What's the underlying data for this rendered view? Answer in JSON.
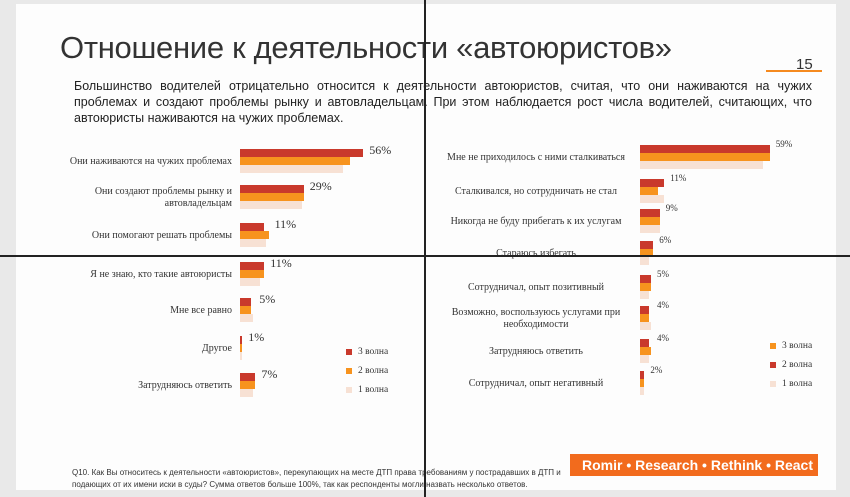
{
  "header": {
    "title": "Отношение к деятельности «автоюристов»",
    "page_number": "15",
    "lead": "Большинство водителей отрицательно относится к деятельности автоюристов, считая, что они наживаются на чужих проблемах и создают проблемы рынку и автовладельцам. При этом наблюдается рост числа водителей, считающих, что автоюристы наживаются на чужих проблемах."
  },
  "colors": {
    "wave3": "#c9392c",
    "wave2": "#f7931e",
    "wave1": "#f7e1d4",
    "accent": "#f26b1d"
  },
  "chart_data": [
    {
      "type": "bar",
      "orientation": "horizontal",
      "title": "",
      "categories": [
        "Они наживаются на чужих проблемах",
        "Они создают проблемы рынку и автовладельцам",
        "Они помогают решать проблемы",
        "Я не знаю, кто такие автоюристы",
        "Мне все равно",
        "Другое",
        "Затрудняюсь ответить"
      ],
      "series": [
        {
          "name": "3 волна",
          "values": [
            56,
            29,
            11,
            11,
            5,
            1,
            7
          ]
        },
        {
          "name": "2 волна",
          "values": [
            50,
            29,
            13,
            11,
            5,
            1,
            7
          ]
        },
        {
          "name": "1 волна",
          "values": [
            47,
            28,
            12,
            9,
            6,
            1,
            6
          ]
        }
      ],
      "value_labels": [
        "56%",
        "29%",
        "11%",
        "11%",
        "5%",
        "1%",
        "7%"
      ],
      "xlim": [
        0,
        60
      ]
    },
    {
      "type": "bar",
      "orientation": "horizontal",
      "title": "",
      "categories": [
        "Мне не приходилось с ними сталкиваться",
        "Сталкивался, но сотрудничать не стал",
        "Никогда не буду прибегать к их услугам",
        "Стараюсь избегать",
        "Сотрудничал, опыт позитивный",
        "Возможно, воспользуюсь услугами при необходимости",
        "Затрудняюсь ответить",
        "Сотрудничал, опыт негативный"
      ],
      "series": [
        {
          "name": "3 волна",
          "values": [
            59,
            11,
            9,
            6,
            5,
            4,
            4,
            2
          ]
        },
        {
          "name": "2 волна",
          "values": [
            59,
            8,
            9,
            6,
            5,
            4,
            5,
            2
          ]
        },
        {
          "name": "1 волна",
          "values": [
            56,
            11,
            9,
            4,
            4,
            5,
            4,
            2
          ]
        }
      ],
      "value_labels": [
        "59%",
        "11%",
        "9%",
        "6%",
        "5%",
        "4%",
        "4%",
        "2%"
      ],
      "xlim": [
        0,
        60
      ]
    }
  ],
  "legend": [
    "3 волна",
    "2 волна",
    "1 волна"
  ],
  "footer": {
    "brand": "Romir • Research • Rethink • React",
    "question": "Q10. Как Вы относитесь к деятельности «автоюристов», перекупающих на месте ДТП права требованиям у пострадавших в ДТП и подающих от их имени иски в суды? Сумма ответов больше 100%, так как респонденты могли назвать несколько ответов."
  }
}
